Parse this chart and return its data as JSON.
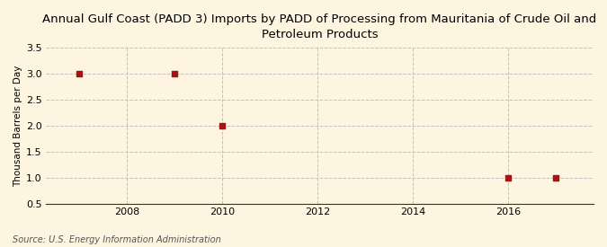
{
  "title": "Annual Gulf Coast (PADD 3) Imports by PADD of Processing from Mauritania of Crude Oil and\nPetroleum Products",
  "ylabel": "Thousand Barrels per Day",
  "source": "Source: U.S. Energy Information Administration",
  "background_color": "#fdf5e0",
  "plot_bg_color": "#fdf5e0",
  "data_x": [
    2007,
    2009,
    2010,
    2016,
    2017
  ],
  "data_y": [
    3.0,
    3.0,
    2.0,
    1.0,
    1.0
  ],
  "marker_color": "#aa1111",
  "marker_size": 4,
  "xlim": [
    2006.3,
    2017.8
  ],
  "ylim": [
    0.5,
    3.5
  ],
  "yticks": [
    0.5,
    1.0,
    1.5,
    2.0,
    2.5,
    3.0,
    3.5
  ],
  "xticks": [
    2008,
    2010,
    2012,
    2014,
    2016
  ],
  "grid_color": "#bbbbbb",
  "axis_color": "#333333",
  "title_fontsize": 9.5,
  "label_fontsize": 7.5,
  "tick_fontsize": 8,
  "source_fontsize": 7
}
